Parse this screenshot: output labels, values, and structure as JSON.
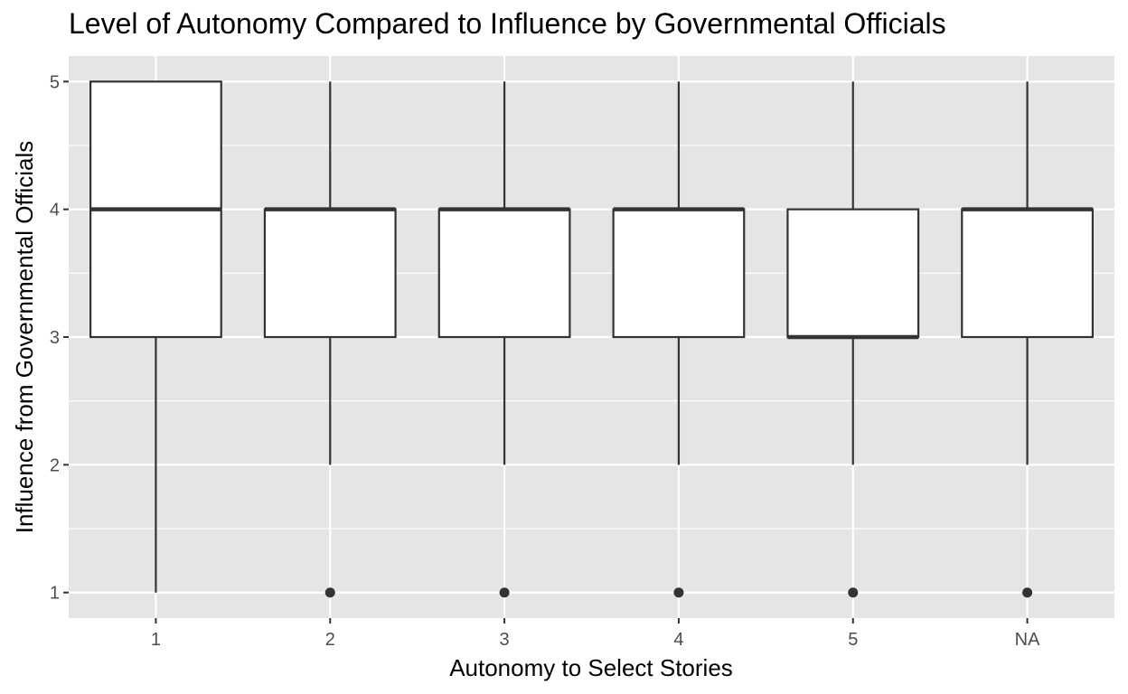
{
  "chart_data": {
    "type": "boxplot",
    "title": "Level of Autonomy Compared to Influence by Governmental Officials",
    "xlabel": "Autonomy to Select Stories",
    "ylabel": "Influence from Governmental Officials",
    "categories": [
      "1",
      "2",
      "3",
      "4",
      "5",
      "NA"
    ],
    "ylim": [
      0.8,
      5.2
    ],
    "yticks": [
      1,
      2,
      3,
      4,
      5
    ],
    "grid": true,
    "legend": "none",
    "boxes": [
      {
        "category": "1",
        "lower_whisker": 1,
        "q1": 3,
        "median": 4,
        "q3": 5,
        "upper_whisker": 5,
        "outliers": []
      },
      {
        "category": "2",
        "lower_whisker": 2,
        "q1": 3,
        "median": 4,
        "q3": 4,
        "upper_whisker": 5,
        "outliers": [
          1
        ]
      },
      {
        "category": "3",
        "lower_whisker": 2,
        "q1": 3,
        "median": 4,
        "q3": 4,
        "upper_whisker": 5,
        "outliers": [
          1
        ]
      },
      {
        "category": "4",
        "lower_whisker": 2,
        "q1": 3,
        "median": 4,
        "q3": 4,
        "upper_whisker": 5,
        "outliers": [
          1
        ]
      },
      {
        "category": "5",
        "lower_whisker": 2,
        "q1": 3,
        "median": 3,
        "q3": 4,
        "upper_whisker": 5,
        "outliers": [
          1
        ]
      },
      {
        "category": "NA",
        "lower_whisker": 2,
        "q1": 3,
        "median": 4,
        "q3": 4,
        "upper_whisker": 5,
        "outliers": [
          1
        ]
      }
    ],
    "colors": {
      "panel_background": "#e5e5e5",
      "grid_line": "#ffffff",
      "box_fill": "#ffffff",
      "box_stroke": "#333333",
      "tick_text": "#4d4d4d"
    }
  }
}
